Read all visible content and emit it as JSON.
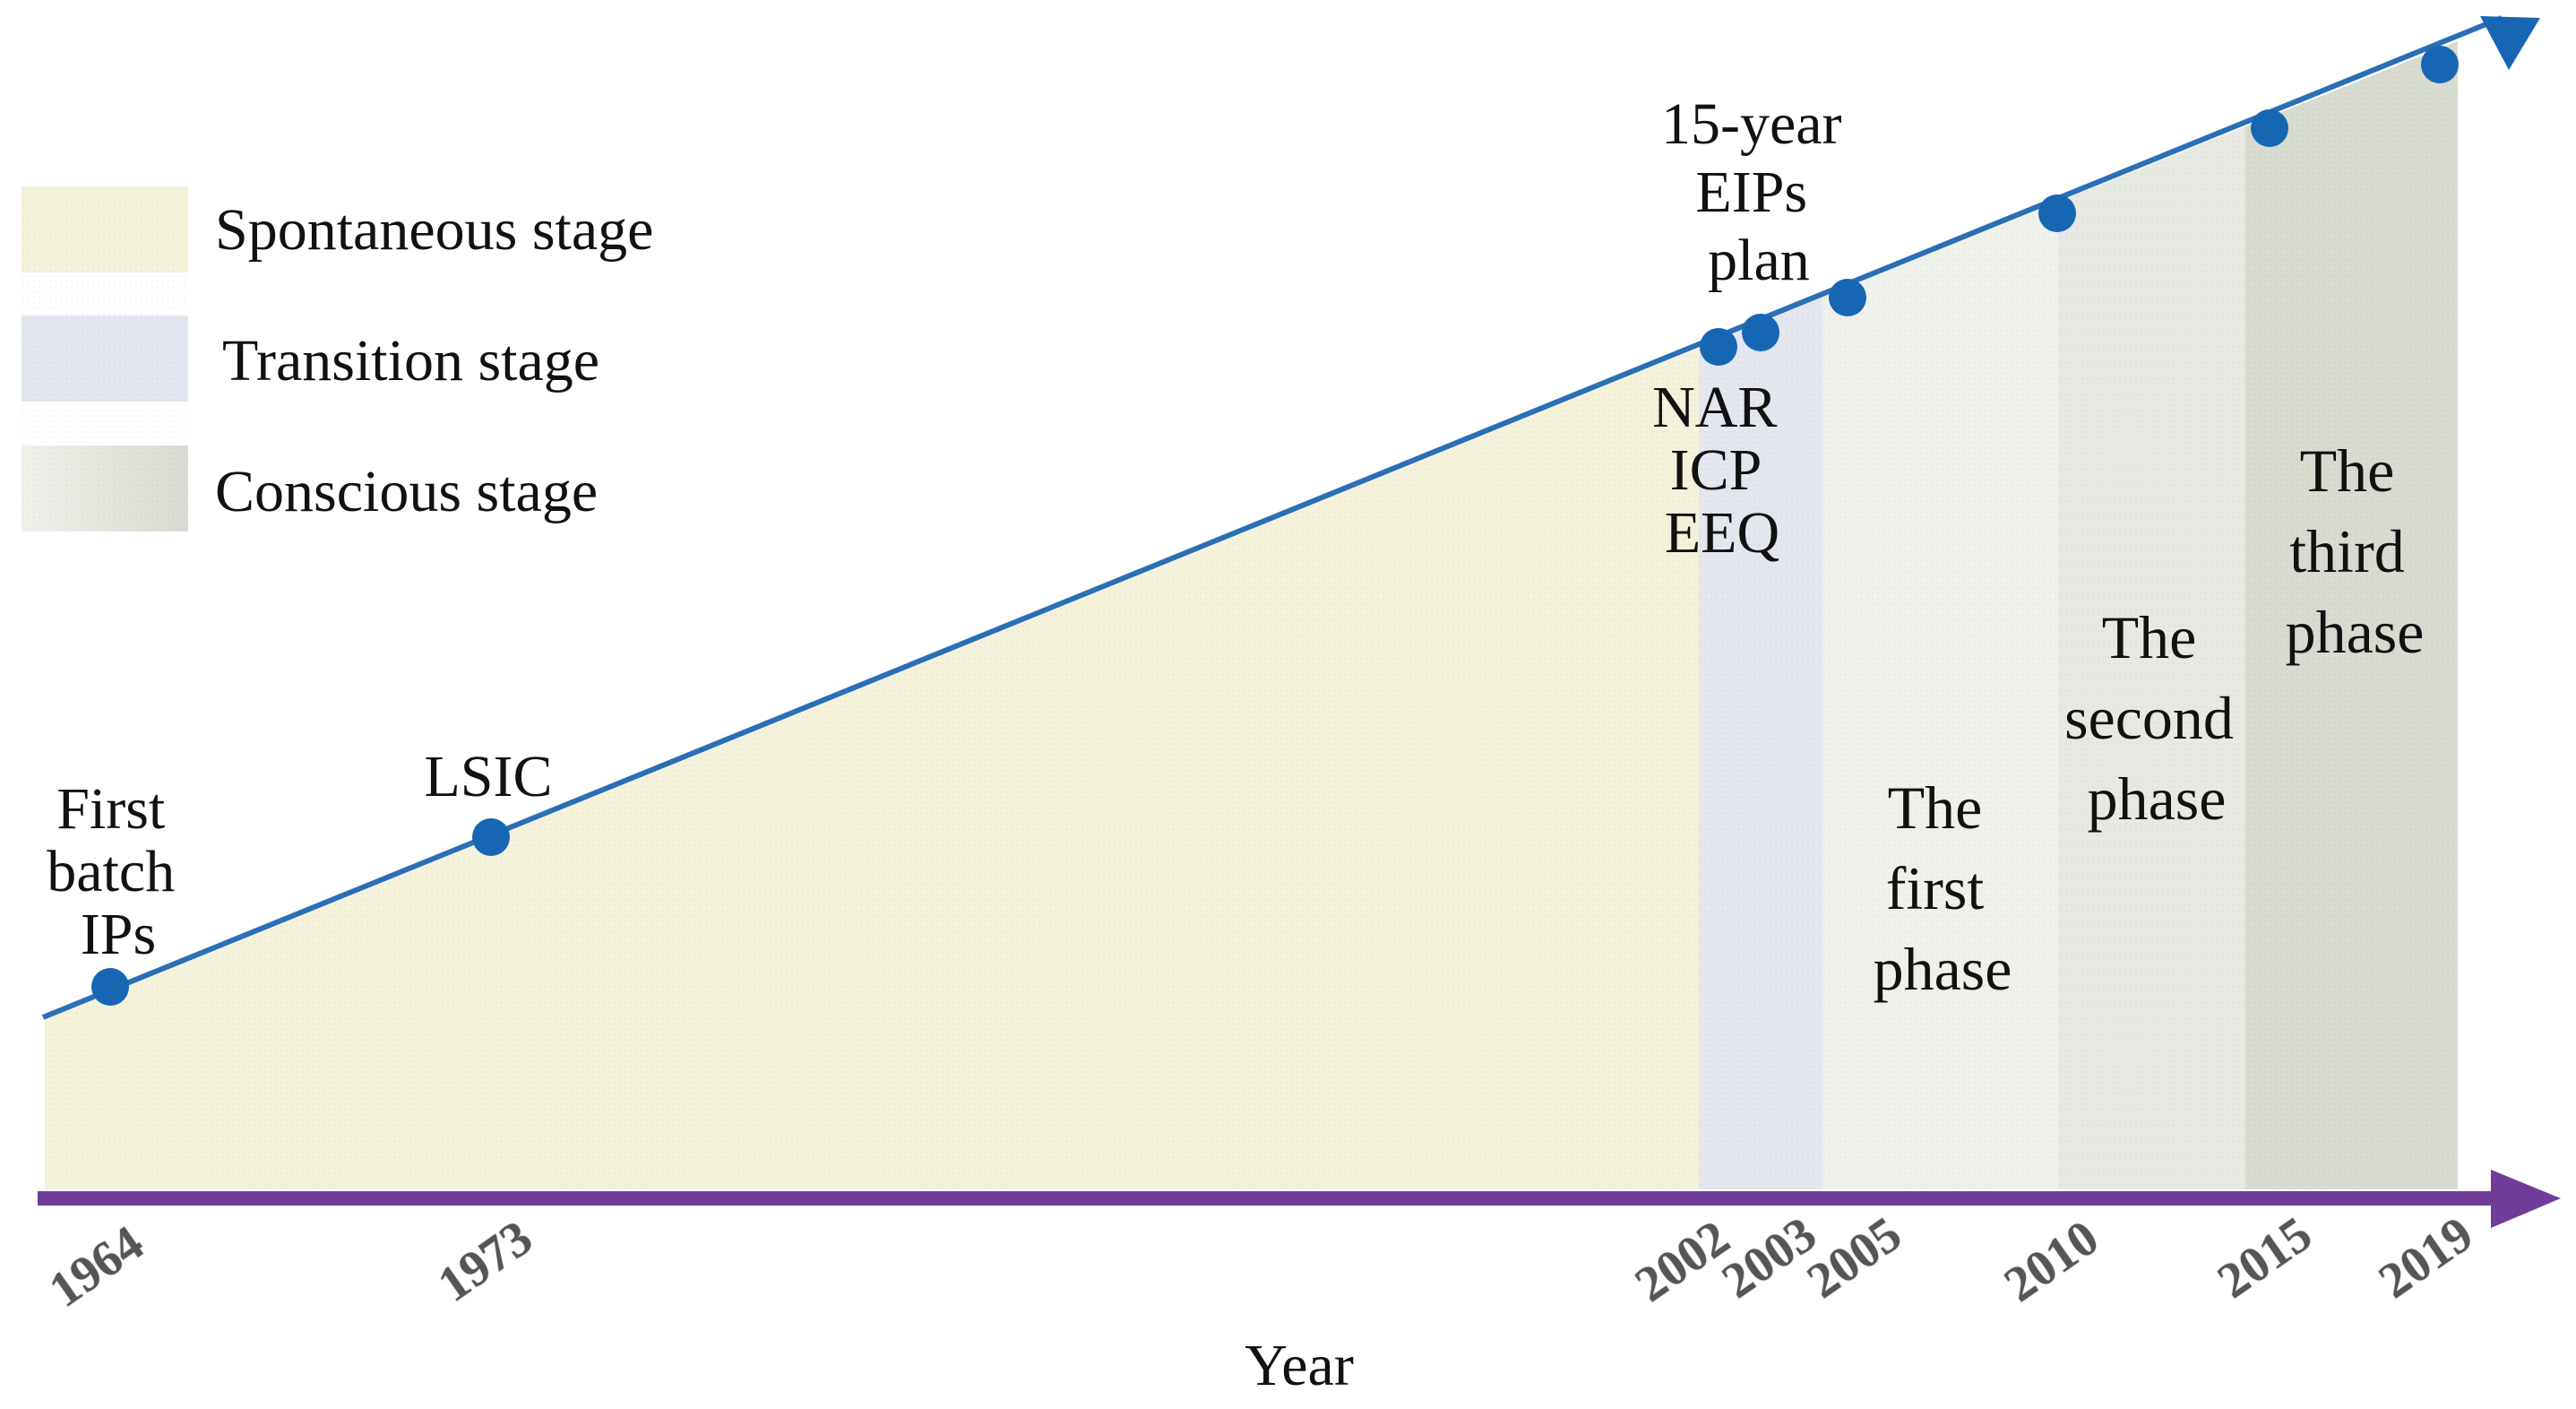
{
  "colors": {
    "spontaneous_fill": "#f5f2dc",
    "transition_fill": "#e4e7ef",
    "conscious_fill_light": "#eff2ea",
    "conscious_fill_mid": "#e7eae2",
    "conscious_fill_dark": "#d7dbd0",
    "timeline_line": "#2a6fb5",
    "event_dot": "#1766b3",
    "year_axis": "#6f3c98"
  },
  "legend": [
    {
      "label": "Spontaneous stage",
      "color_key": "spontaneous_fill"
    },
    {
      "label": "Transition stage",
      "color_key": "transition_fill"
    },
    {
      "label": "Conscious stage",
      "color_key": "conscious_fill_dark"
    }
  ],
  "axis": {
    "title": "Year",
    "ticks": [
      "1964",
      "1973",
      "2002",
      "2003",
      "2005",
      "2010",
      "2015",
      "2019"
    ]
  },
  "events": [
    {
      "year": "1964",
      "lines": [
        "First",
        "batch",
        "IPs"
      ]
    },
    {
      "year": "1973",
      "lines": [
        "LSIC"
      ]
    },
    {
      "year": "2002",
      "lines": [
        "NAR",
        "ICP",
        "EEQ"
      ]
    },
    {
      "year": "2003",
      "lines": [
        "15-year",
        "EIPs",
        "plan"
      ]
    },
    {
      "year": "2005",
      "lines": []
    },
    {
      "year": "2010",
      "lines": []
    },
    {
      "year": "2015",
      "lines": []
    },
    {
      "year": "2019",
      "lines": []
    }
  ],
  "phases": [
    {
      "label_lines": [
        "The",
        "first",
        "phase"
      ],
      "from": "2005",
      "to": "2010"
    },
    {
      "label_lines": [
        "The",
        "second",
        "phase"
      ],
      "from": "2010",
      "to": "2015"
    },
    {
      "label_lines": [
        "The",
        "third",
        "phase"
      ],
      "from": "2015",
      "to": "2019"
    }
  ]
}
